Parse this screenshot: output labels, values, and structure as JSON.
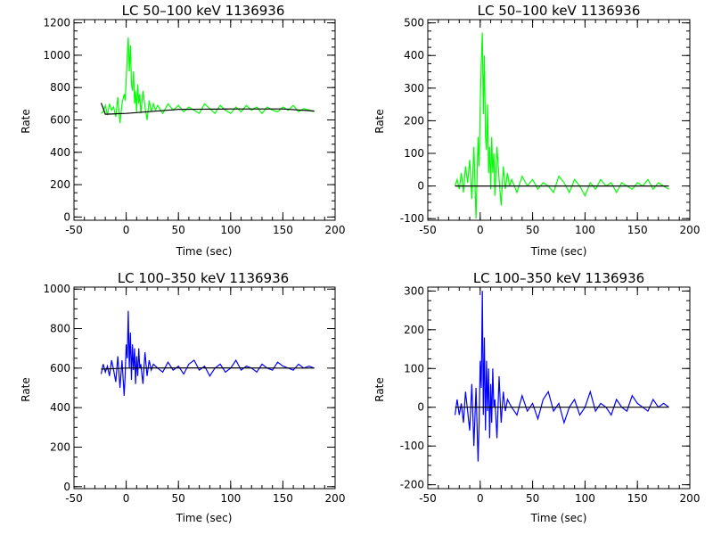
{
  "chart_data": [
    {
      "type": "line",
      "title": "LC 50–100 keV  1136936",
      "xlabel": "Time (sec)",
      "ylabel": "Rate",
      "xlim": [
        -50,
        200
      ],
      "ylim": [
        -20,
        1220
      ],
      "xticks": [
        -50,
        0,
        50,
        100,
        150,
        200
      ],
      "yticks": [
        0,
        200,
        400,
        600,
        800,
        1000,
        1200
      ],
      "series": [
        {
          "color": "#00ff00",
          "x": [
            -24,
            -22,
            -20,
            -18,
            -16,
            -14,
            -12,
            -10,
            -8,
            -6,
            -4,
            -2,
            -1,
            0,
            1,
            2,
            3,
            4,
            5,
            6,
            7,
            8,
            9,
            10,
            11,
            12,
            13,
            14,
            16,
            18,
            20,
            22,
            24,
            26,
            28,
            30,
            35,
            40,
            45,
            50,
            55,
            60,
            65,
            70,
            75,
            80,
            85,
            90,
            95,
            100,
            105,
            110,
            115,
            120,
            125,
            130,
            135,
            140,
            145,
            150,
            155,
            160,
            165,
            170,
            175,
            180
          ],
          "y": [
            640,
            650,
            690,
            630,
            700,
            660,
            680,
            620,
            740,
            580,
            700,
            760,
            720,
            850,
            1000,
            1110,
            900,
            1060,
            820,
            780,
            900,
            700,
            780,
            650,
            820,
            700,
            760,
            640,
            780,
            680,
            600,
            720,
            650,
            700,
            660,
            690,
            640,
            700,
            660,
            690,
            650,
            680,
            660,
            640,
            700,
            670,
            640,
            690,
            660,
            640,
            680,
            650,
            690,
            660,
            680,
            640,
            680,
            660,
            650,
            680,
            660,
            690,
            650,
            670,
            660,
            650
          ]
        },
        {
          "color": "#000000",
          "x": [
            -24,
            -20,
            0,
            50,
            100,
            150,
            180
          ],
          "y": [
            705,
            635,
            640,
            665,
            668,
            668,
            655
          ]
        }
      ]
    },
    {
      "type": "line",
      "title": "LC 50–100 keV  1136936",
      "xlabel": "Time (sec)",
      "ylabel": "Rate",
      "xlim": [
        -50,
        200
      ],
      "ylim": [
        -105,
        510
      ],
      "xticks": [
        -50,
        0,
        50,
        100,
        150,
        200
      ],
      "yticks": [
        -100,
        0,
        100,
        200,
        300,
        400,
        500
      ],
      "series": [
        {
          "color": "#00ff00",
          "x": [
            -24,
            -22,
            -20,
            -18,
            -16,
            -14,
            -12,
            -10,
            -8,
            -6,
            -4,
            -2,
            -1,
            0,
            1,
            2,
            3,
            4,
            5,
            6,
            7,
            8,
            9,
            10,
            11,
            12,
            13,
            14,
            16,
            18,
            20,
            22,
            24,
            26,
            28,
            30,
            35,
            40,
            45,
            50,
            55,
            60,
            65,
            70,
            75,
            80,
            85,
            90,
            95,
            100,
            105,
            110,
            115,
            120,
            125,
            130,
            135,
            140,
            145,
            150,
            155,
            160,
            165,
            170,
            175,
            180
          ],
          "y": [
            0,
            20,
            -10,
            40,
            -20,
            60,
            10,
            80,
            -40,
            120,
            -100,
            150,
            60,
            250,
            380,
            470,
            220,
            400,
            150,
            110,
            250,
            40,
            120,
            -10,
            150,
            40,
            100,
            -30,
            120,
            20,
            -60,
            60,
            -10,
            40,
            0,
            20,
            -20,
            30,
            0,
            20,
            -10,
            10,
            0,
            -20,
            30,
            10,
            -20,
            20,
            0,
            -30,
            10,
            -10,
            20,
            0,
            10,
            -20,
            10,
            0,
            -10,
            10,
            0,
            20,
            -10,
            10,
            0,
            -10
          ]
        },
        {
          "color": "#000000",
          "x": [
            -24,
            180
          ],
          "y": [
            0,
            0
          ]
        }
      ]
    },
    {
      "type": "line",
      "title": "LC 100–350 keV  1136936",
      "xlabel": "Time (sec)",
      "ylabel": "Rate",
      "xlim": [
        -50,
        200
      ],
      "ylim": [
        -10,
        1010
      ],
      "xticks": [
        -50,
        0,
        50,
        100,
        150,
        200
      ],
      "yticks": [
        0,
        200,
        400,
        600,
        800,
        1000
      ],
      "series": [
        {
          "color": "#0000ff",
          "x": [
            -24,
            -22,
            -20,
            -18,
            -16,
            -14,
            -12,
            -10,
            -8,
            -6,
            -4,
            -2,
            -1,
            0,
            1,
            2,
            3,
            4,
            5,
            6,
            7,
            8,
            9,
            10,
            11,
            12,
            13,
            14,
            16,
            18,
            20,
            22,
            24,
            26,
            28,
            30,
            35,
            40,
            45,
            50,
            55,
            60,
            65,
            70,
            75,
            80,
            85,
            90,
            95,
            100,
            105,
            110,
            115,
            120,
            125,
            130,
            135,
            140,
            145,
            150,
            155,
            160,
            165,
            170,
            175,
            180
          ],
          "y": [
            570,
            620,
            580,
            610,
            560,
            640,
            590,
            530,
            660,
            500,
            640,
            460,
            560,
            720,
            650,
            890,
            600,
            780,
            540,
            720,
            590,
            700,
            520,
            660,
            560,
            700,
            600,
            620,
            520,
            680,
            560,
            640,
            590,
            620,
            610,
            600,
            580,
            630,
            590,
            610,
            570,
            620,
            640,
            590,
            610,
            560,
            600,
            620,
            580,
            600,
            640,
            590,
            610,
            600,
            580,
            620,
            600,
            590,
            630,
            610,
            600,
            590,
            620,
            600,
            610,
            600
          ]
        },
        {
          "color": "#000000",
          "x": [
            -24,
            0,
            50,
            100,
            150,
            180
          ],
          "y": [
            595,
            600,
            601,
            601,
            600,
            600
          ]
        }
      ]
    },
    {
      "type": "line",
      "title": "LC 100–350 keV  1136936",
      "xlabel": "Time (sec)",
      "ylabel": "Rate",
      "xlim": [
        -50,
        200
      ],
      "ylim": [
        -210,
        310
      ],
      "xticks": [
        -50,
        0,
        50,
        100,
        150,
        200
      ],
      "yticks": [
        -200,
        -100,
        0,
        100,
        200,
        300
      ],
      "series": [
        {
          "color": "#0000ff",
          "x": [
            -24,
            -22,
            -20,
            -18,
            -16,
            -14,
            -12,
            -10,
            -8,
            -6,
            -4,
            -2,
            -1,
            0,
            1,
            2,
            3,
            4,
            5,
            6,
            7,
            8,
            9,
            10,
            11,
            12,
            13,
            14,
            16,
            18,
            20,
            22,
            24,
            26,
            28,
            30,
            35,
            40,
            45,
            50,
            55,
            60,
            65,
            70,
            75,
            80,
            85,
            90,
            95,
            100,
            105,
            110,
            115,
            120,
            125,
            130,
            135,
            140,
            145,
            150,
            155,
            160,
            165,
            170,
            175,
            180
          ],
          "y": [
            -20,
            20,
            -20,
            10,
            -40,
            40,
            -10,
            -60,
            60,
            -100,
            50,
            -140,
            -40,
            120,
            50,
            300,
            -20,
            180,
            -60,
            120,
            -10,
            100,
            -80,
            60,
            -40,
            100,
            0,
            20,
            -80,
            80,
            -40,
            40,
            -10,
            20,
            10,
            0,
            -20,
            30,
            -10,
            10,
            -30,
            20,
            40,
            -10,
            10,
            -40,
            0,
            20,
            -20,
            0,
            40,
            -10,
            10,
            0,
            -20,
            20,
            0,
            -10,
            30,
            10,
            0,
            -10,
            20,
            0,
            10,
            0
          ]
        },
        {
          "color": "#000000",
          "x": [
            -24,
            180
          ],
          "y": [
            0,
            0
          ]
        }
      ]
    }
  ]
}
